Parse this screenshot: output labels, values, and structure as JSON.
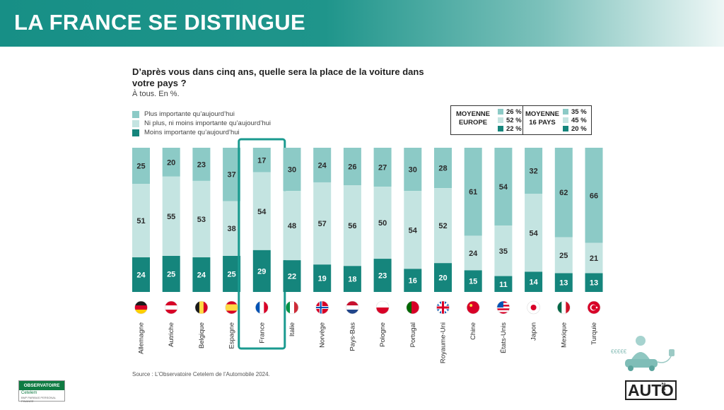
{
  "header": {
    "title": "LA FRANCE SE DISTINGUE"
  },
  "question": "D’après vous dans cinq ans, quelle sera la place de la voiture dans votre pays ?",
  "subtitle": "À tous. En %.",
  "legend": [
    {
      "label": "Plus importante qu’aujourd’hui",
      "color": "#8ccac6"
    },
    {
      "label": "Ni plus, ni moins importante qu’aujourd’hui",
      "color": "#c4e4e1"
    },
    {
      "label": "Moins importante qu’aujourd’hui",
      "color": "#15857c"
    }
  ],
  "averages": [
    {
      "label": "MOYENNE EUROPE",
      "values": [
        "26 %",
        "52 %",
        "22 %"
      ]
    },
    {
      "label": "MOYENNE 16 PAYS",
      "values": [
        "35 %",
        "45 %",
        "20 %"
      ]
    }
  ],
  "chart_data": {
    "type": "bar",
    "stacked": true,
    "categories": [
      "Allemagne",
      "Autriche",
      "Belgique",
      "Espagne",
      "France",
      "Italie",
      "Norvège",
      "Pays-Bas",
      "Pologne",
      "Portugal",
      "Royaume-Uni",
      "Chine",
      "États-Unis",
      "Japon",
      "Mexique",
      "Turquie"
    ],
    "series": [
      {
        "name": "Plus importante qu’aujourd’hui",
        "color": "#8ccac6",
        "values": [
          25,
          20,
          23,
          37,
          17,
          30,
          24,
          26,
          27,
          30,
          28,
          61,
          54,
          32,
          62,
          66
        ]
      },
      {
        "name": "Ni plus, ni moins importante qu’aujourd’hui",
        "color": "#c4e4e1",
        "values": [
          51,
          55,
          53,
          38,
          54,
          48,
          57,
          56,
          50,
          54,
          52,
          24,
          35,
          54,
          25,
          21
        ]
      },
      {
        "name": "Moins importante qu’aujourd’hui",
        "color": "#15857c",
        "values": [
          24,
          25,
          24,
          25,
          29,
          22,
          19,
          18,
          23,
          16,
          20,
          15,
          11,
          14,
          13,
          13
        ]
      }
    ],
    "ylim": [
      0,
      100
    ],
    "highlight": "France",
    "highlight_color": "#1a9a8f",
    "grid": false
  },
  "flags": [
    "flag-germany-icon",
    "flag-austria-icon",
    "flag-belgium-icon",
    "flag-spain-icon",
    "flag-france-icon",
    "flag-italy-icon",
    "flag-norway-icon",
    "flag-netherlands-icon",
    "flag-poland-icon",
    "flag-portugal-icon",
    "flag-uk-icon",
    "flag-china-icon",
    "flag-usa-icon",
    "flag-japan-icon",
    "flag-mexico-icon",
    "flag-turkey-icon"
  ],
  "source": "Source : L’Observatoire Cetelem de l’Automobile 2024.",
  "logos": {
    "observatoire": "OBSERVATOIRE",
    "observatoire_sub": "Cetelem",
    "observatoire_tiny": "BNP PARIBAS PERSONAL FINANCE",
    "auto": "AUTO",
    "auto_year": "2024"
  },
  "illustration": {
    "money": "€€€€€"
  }
}
